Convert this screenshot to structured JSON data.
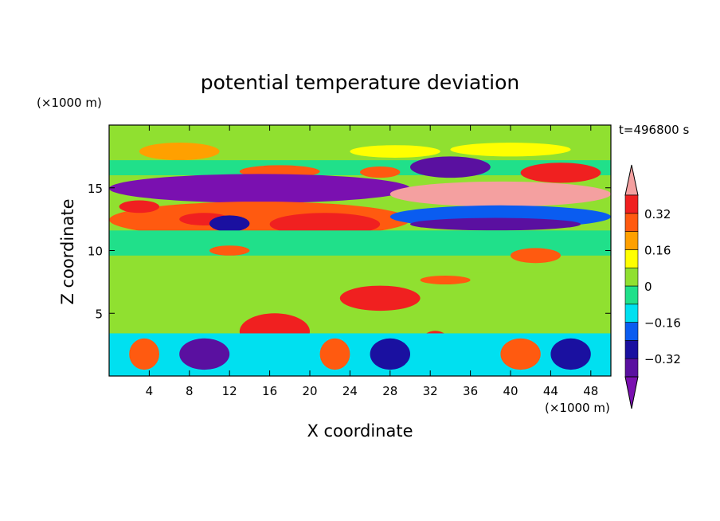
{
  "chart_data": {
    "type": "heatmap",
    "title": "potential temperature deviation",
    "xlabel": "X coordinate",
    "ylabel": "Z coordinate",
    "x_unit": "(×1000 m)",
    "y_unit": "(×1000 m)",
    "time_label": "t=496800 s",
    "xlim": [
      0,
      50
    ],
    "ylim": [
      0,
      20
    ],
    "x_ticks": [
      4,
      8,
      12,
      16,
      20,
      24,
      28,
      32,
      36,
      40,
      44,
      48
    ],
    "y_ticks": [
      5,
      10,
      15
    ],
    "colorbar": {
      "levels": [
        -0.4,
        -0.32,
        -0.24,
        -0.16,
        -0.08,
        0,
        0.08,
        0.16,
        0.24,
        0.32,
        0.4
      ],
      "labels": [
        "0.32",
        "0.16",
        "0",
        "−0.16",
        "−0.32"
      ],
      "label_values": [
        0.32,
        0.16,
        0,
        -0.16,
        -0.32
      ],
      "colors_low_to_high": [
        "#7a10b0",
        "#5a10a0",
        "#1a10a0",
        "#0a5cf0",
        "#00e0f0",
        "#20e08a",
        "#90e030",
        "#ffff00",
        "#ffa000",
        "#ff5a10",
        "#f02020",
        "#f4a0a0"
      ]
    },
    "field_regions": [
      {
        "x": [
          0,
          50
        ],
        "z": [
          0,
          20
        ],
        "value": 0.02
      },
      {
        "x": [
          0,
          50
        ],
        "z": [
          17,
          20
        ],
        "value": 0.04
      },
      {
        "x": [
          3,
          11
        ],
        "z": [
          17.2,
          18.6
        ],
        "value": 0.18
      },
      {
        "x": [
          24,
          33
        ],
        "z": [
          17.4,
          18.4
        ],
        "value": 0.12
      },
      {
        "x": [
          34,
          46
        ],
        "z": [
          17.5,
          18.6
        ],
        "value": 0.12
      },
      {
        "x": [
          0,
          50
        ],
        "z": [
          16,
          17.2
        ],
        "value": -0.05
      },
      {
        "x": [
          13,
          21
        ],
        "z": [
          15.8,
          16.8
        ],
        "value": 0.28
      },
      {
        "x": [
          25,
          29
        ],
        "z": [
          15.8,
          16.7
        ],
        "value": 0.3
      },
      {
        "x": [
          30,
          38
        ],
        "z": [
          15.8,
          17.5
        ],
        "value": -0.34
      },
      {
        "x": [
          41,
          49
        ],
        "z": [
          15.4,
          17.0
        ],
        "value": 0.36
      },
      {
        "x": [
          0,
          30
        ],
        "z": [
          13.8,
          16.1
        ],
        "value": -0.42
      },
      {
        "x": [
          28,
          50
        ],
        "z": [
          13.5,
          15.5
        ],
        "value": 0.4
      },
      {
        "x": [
          0,
          30
        ],
        "z": [
          11,
          13.9
        ],
        "value": 0.26
      },
      {
        "x": [
          1,
          5
        ],
        "z": [
          13.0,
          14.0
        ],
        "value": 0.38
      },
      {
        "x": [
          7,
          12
        ],
        "z": [
          12.0,
          13.0
        ],
        "value": 0.38
      },
      {
        "x": [
          16,
          27
        ],
        "z": [
          11.2,
          13.0
        ],
        "value": 0.38
      },
      {
        "x": [
          10,
          14
        ],
        "z": [
          11.5,
          12.8
        ],
        "value": -0.28
      },
      {
        "x": [
          28,
          50
        ],
        "z": [
          11.8,
          13.6
        ],
        "value": -0.24
      },
      {
        "x": [
          30,
          47
        ],
        "z": [
          11.6,
          12.6
        ],
        "value": -0.33
      },
      {
        "x": [
          0,
          50
        ],
        "z": [
          9.5,
          11.6
        ],
        "value": -0.04
      },
      {
        "x": [
          0,
          50
        ],
        "z": [
          8.2,
          9.6
        ],
        "value": 0.07
      },
      {
        "x": [
          40,
          45
        ],
        "z": [
          9.0,
          10.2
        ],
        "value": 0.3
      },
      {
        "x": [
          10,
          14
        ],
        "z": [
          9.6,
          10.4
        ],
        "value": 0.3
      },
      {
        "x": [
          0,
          50
        ],
        "z": [
          4.5,
          8.2
        ],
        "value": 0.03
      },
      {
        "x": [
          23,
          31
        ],
        "z": [
          5.2,
          7.2
        ],
        "value": 0.37
      },
      {
        "x": [
          31,
          36
        ],
        "z": [
          7.3,
          8.0
        ],
        "value": 0.3
      },
      {
        "x": [
          0,
          50
        ],
        "z": [
          3.4,
          4.5
        ],
        "value": 0.0
      },
      {
        "x": [
          13,
          20
        ],
        "z": [
          2.1,
          5.0
        ],
        "value": 0.38
      },
      {
        "x": [
          31,
          34
        ],
        "z": [
          1.5,
          3.6
        ],
        "value": 0.36
      },
      {
        "x": [
          0,
          50
        ],
        "z": [
          0,
          3.4
        ],
        "value": -0.1
      },
      {
        "x": [
          7,
          12
        ],
        "z": [
          0.5,
          3.0
        ],
        "value": -0.4
      },
      {
        "x": [
          21,
          24
        ],
        "z": [
          0.5,
          3.0
        ],
        "value": 0.3
      },
      {
        "x": [
          26,
          30
        ],
        "z": [
          0.5,
          3.0
        ],
        "value": -0.32
      },
      {
        "x": [
          39,
          43
        ],
        "z": [
          0.5,
          3.0
        ],
        "value": 0.3
      },
      {
        "x": [
          2,
          5
        ],
        "z": [
          0.5,
          3.0
        ],
        "value": 0.26
      },
      {
        "x": [
          44,
          48
        ],
        "z": [
          0.5,
          3.0
        ],
        "value": -0.3
      }
    ]
  }
}
